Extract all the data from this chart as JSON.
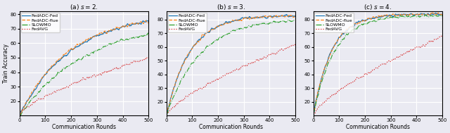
{
  "subplots": [
    {
      "title": "(a) $s = 2$.",
      "xlabel": "Communication Rounds",
      "ylabel": "Train Accuracy",
      "xlim": [
        0,
        500
      ],
      "ylim": [
        10,
        82
      ],
      "yticks": [
        20,
        30,
        40,
        50,
        60,
        70,
        80
      ],
      "xticks": [
        0,
        100,
        200,
        300,
        400,
        500
      ],
      "curves": {
        "FedADC-Fed": {
          "color": "#1f77b4",
          "style": "-",
          "lw": 0.9,
          "tau": 200,
          "ymin": 10,
          "ymax": 81
        },
        "FedADC-flue": {
          "color": "#ff7f0e",
          "style": "--",
          "lw": 0.8,
          "tau": 190,
          "ymin": 10,
          "ymax": 80
        },
        "SLOWMO": {
          "color": "#2ca02c",
          "style": "-.",
          "lw": 0.8,
          "tau": 260,
          "ymin": 10,
          "ymax": 76
        },
        "FedAVG": {
          "color": "#d62728",
          "style": ":",
          "lw": 0.9,
          "tau": 999,
          "ymin": 11,
          "ymax": 50
        }
      }
    },
    {
      "title": "(b) $s = 3$.",
      "xlabel": "Communication Rounds",
      "ylabel": "Train Accuracy",
      "xlim": [
        0,
        500
      ],
      "ylim": [
        10,
        86
      ],
      "yticks": [
        20,
        30,
        40,
        50,
        60,
        70,
        80
      ],
      "xticks": [
        0,
        100,
        200,
        300,
        400,
        500
      ],
      "curves": {
        "FedADC-Fed": {
          "color": "#1f77b4",
          "style": "-",
          "lw": 0.9,
          "tau": 90,
          "ymin": 10,
          "ymax": 83
        },
        "FedADC-flue": {
          "color": "#ff7f0e",
          "style": "--",
          "lw": 0.8,
          "tau": 90,
          "ymin": 10,
          "ymax": 83
        },
        "SLOWMO": {
          "color": "#2ca02c",
          "style": "-.",
          "lw": 0.8,
          "tau": 130,
          "ymin": 10,
          "ymax": 81
        },
        "FedAVG": {
          "color": "#d62728",
          "style": ":",
          "lw": 0.9,
          "tau": 999,
          "ymin": 10,
          "ymax": 62
        }
      }
    },
    {
      "title": "(c) $s = 4$.",
      "xlabel": "Communication Rounds",
      "ylabel": "Train Accuracy",
      "xlim": [
        0,
        500
      ],
      "ylim": [
        10,
        86
      ],
      "yticks": [
        20,
        30,
        40,
        50,
        60,
        70,
        80
      ],
      "xticks": [
        0,
        100,
        200,
        300,
        400,
        500
      ],
      "curves": {
        "FedADC-Fed": {
          "color": "#1f77b4",
          "style": "-",
          "lw": 0.9,
          "tau": 70,
          "ymin": 10,
          "ymax": 84
        },
        "FedADC-flue": {
          "color": "#ff7f0e",
          "style": "--",
          "lw": 0.8,
          "tau": 70,
          "ymin": 10,
          "ymax": 84
        },
        "SLOWMO": {
          "color": "#2ca02c",
          "style": "-.",
          "lw": 0.8,
          "tau": 80,
          "ymin": 10,
          "ymax": 83
        },
        "FedAVG": {
          "color": "#d62728",
          "style": ":",
          "lw": 0.9,
          "tau": 999,
          "ymin": 10,
          "ymax": 68
        }
      }
    }
  ],
  "legend_entries": [
    [
      "FedADC-Fed",
      "#1f77b4",
      "-"
    ],
    [
      "FedADC-flue",
      "#ff7f0e",
      "--"
    ],
    [
      "SLOWMO",
      "#2ca02c",
      "-."
    ],
    [
      "FedAVG",
      "#d62728",
      ":"
    ]
  ],
  "bg_color": "#eaeaf2",
  "grid_color": "white",
  "fontsize_title": 6.5,
  "fontsize_axis": 5.5,
  "fontsize_tick": 5,
  "fontsize_legend": 4.5
}
